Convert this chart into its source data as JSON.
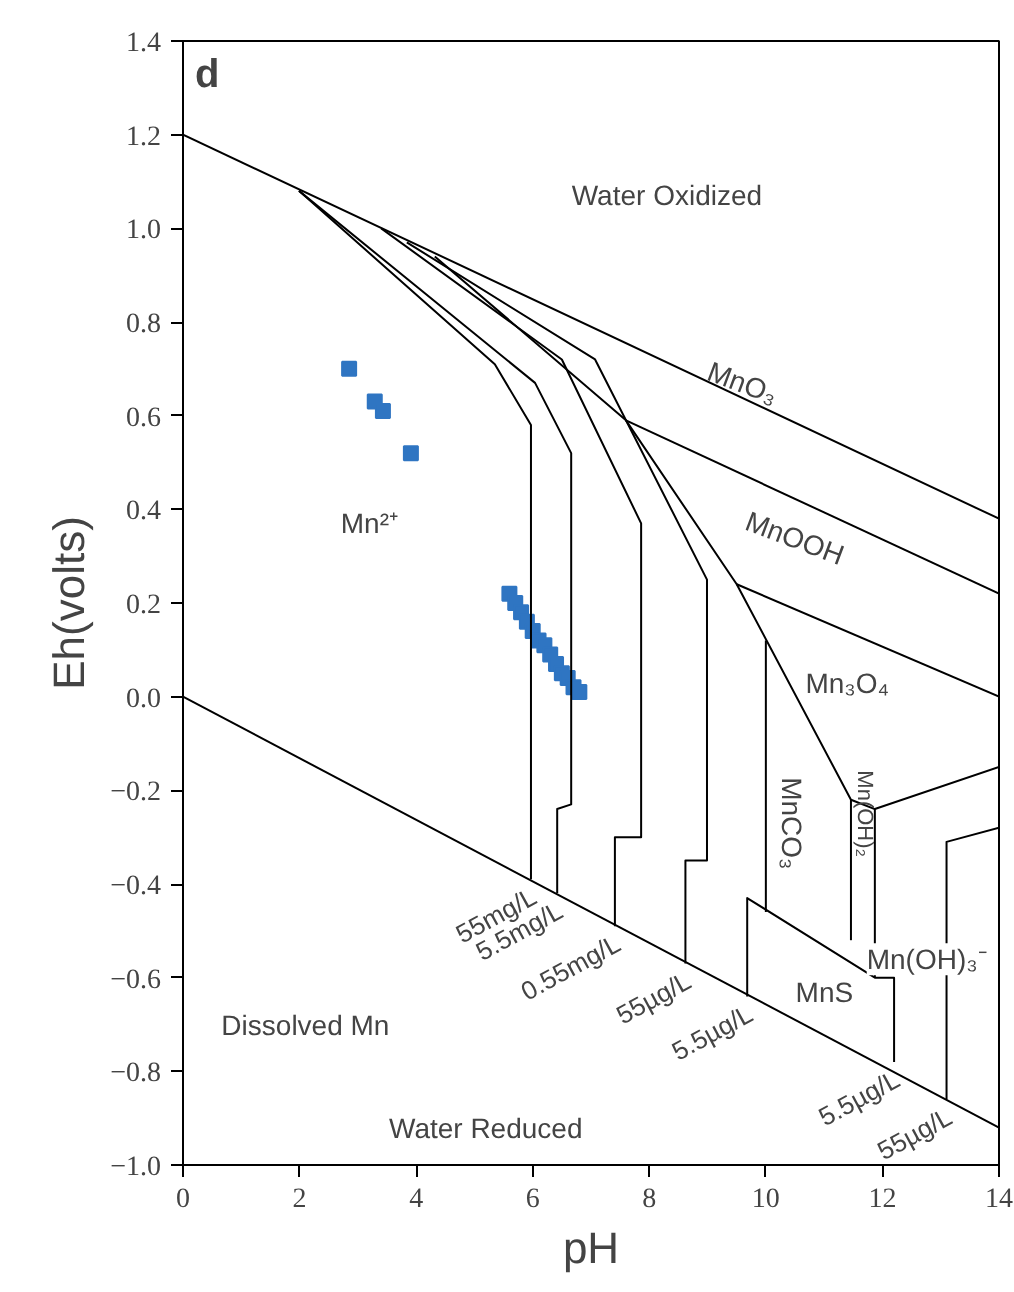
{
  "chart_data": {
    "type": "scatter",
    "title": "d",
    "xlabel": "pH",
    "ylabel": "Eh(volts)",
    "xlim": [
      0,
      14
    ],
    "ylim": [
      -1.0,
      1.4
    ],
    "xticks": [
      0,
      2,
      4,
      6,
      8,
      10,
      12,
      14
    ],
    "yticks": [
      {
        "value": -1.0,
        "label": "−1.0"
      },
      {
        "value": -0.8,
        "label": "−0.8"
      },
      {
        "value": -0.6,
        "label": "−0.6"
      },
      {
        "value": -0.4,
        "label": "−0.4"
      },
      {
        "value": -0.2,
        "label": "−0.2"
      },
      {
        "value": 0,
        "label": "0.0"
      },
      {
        "value": 0.2,
        "label": "0.2"
      },
      {
        "value": 0.4,
        "label": "0.4"
      },
      {
        "value": 0.6,
        "label": "0.6"
      },
      {
        "value": 0.8,
        "label": "0.8"
      },
      {
        "value": 1.0,
        "label": "1.0"
      },
      {
        "value": 1.2,
        "label": "1.2"
      },
      {
        "value": 1.4,
        "label": "1.4"
      }
    ],
    "grid": false,
    "line_style": "solid",
    "series": [
      {
        "marker": "square",
        "color": "#2f75c2",
        "x": [
          2.85,
          3.29,
          3.43,
          3.91,
          5.6,
          5.7,
          5.8,
          5.9,
          6.0,
          6.1,
          6.2,
          6.3,
          6.4,
          6.5,
          6.6,
          6.7,
          6.8
        ],
        "values": [
          0.7,
          0.63,
          0.61,
          0.52,
          0.22,
          0.2,
          0.18,
          0.16,
          0.14,
          0.12,
          0.11,
          0.09,
          0.07,
          0.05,
          0.04,
          0.02,
          0.01
        ]
      },
      {
        "type": "line",
        "color": "#000000",
        "x": [
          0,
          14
        ],
        "values": [
          1.2,
          0.38
        ]
      },
      {
        "type": "line",
        "color": "#000000",
        "x": [
          0,
          14
        ],
        "values": [
          0.0,
          -0.92
        ]
      },
      {
        "type": "line",
        "color": "#000000",
        "x": [
          1.99,
          5.35,
          5.97,
          5.97
        ],
        "values": [
          1.08,
          0.71,
          0.58,
          -0.39
        ]
      },
      {
        "type": "line",
        "color": "#000000",
        "x": [
          1.99,
          6.04,
          6.66,
          6.66,
          6.42,
          6.42
        ],
        "values": [
          1.08,
          0.67,
          0.52,
          -0.23,
          -0.24,
          -0.42
        ]
      },
      {
        "type": "line",
        "color": "#000000",
        "x": [
          3.4,
          6.5,
          7.86,
          7.86,
          7.41,
          7.41
        ],
        "values": [
          1.0,
          0.72,
          0.37,
          -0.3,
          -0.3,
          -0.49
        ]
      },
      {
        "type": "line",
        "color": "#000000",
        "x": [
          3.84,
          7.07,
          8.99,
          8.99,
          8.62,
          8.62
        ],
        "values": [
          0.97,
          0.72,
          0.25,
          -0.35,
          -0.35,
          -0.57
        ]
      },
      {
        "type": "line",
        "color": "#000000",
        "x": [
          4.32,
          7.6,
          9.5,
          11.46,
          11.87,
          14
        ],
        "values": [
          0.94,
          0.59,
          0.24,
          -0.22,
          -0.24,
          -0.15
        ]
      },
      {
        "type": "line",
        "color": "#000000",
        "x": [
          7.6,
          14
        ],
        "values": [
          0.59,
          0.22
        ]
      },
      {
        "type": "line",
        "color": "#000000",
        "x": [
          9.5,
          14
        ],
        "values": [
          0.24,
          0.0
        ]
      },
      {
        "type": "line",
        "color": "#000000",
        "x": [
          10.0,
          10.0
        ],
        "values": [
          0.12,
          -0.46
        ]
      },
      {
        "type": "line",
        "color": "#000000",
        "x": [
          11.46,
          11.46
        ],
        "values": [
          -0.22,
          -0.52
        ]
      },
      {
        "type": "line",
        "color": "#000000",
        "x": [
          11.87,
          11.87
        ],
        "values": [
          -0.24,
          -0.6
        ]
      },
      {
        "type": "line",
        "color": "#000000",
        "x": [
          9.68,
          9.68,
          11.87,
          12.2,
          12.2
        ],
        "values": [
          -0.64,
          -0.43,
          -0.6,
          -0.6,
          -0.78
        ]
      },
      {
        "type": "line",
        "color": "#000000",
        "x": [
          13.1,
          13.1,
          14
        ],
        "values": [
          -0.86,
          -0.31,
          -0.28
        ]
      }
    ],
    "annotations": [
      "Water Oxidized",
      "MnO₃",
      "MnOOH",
      "Mn₃O₄",
      "MnCO₃",
      "Mn(OH)₂",
      "Mn(OH)₃⁻",
      "MnS",
      "Mn²⁺",
      "Dissolved Mn",
      "Water Reduced",
      {
        "text": "55mg/L",
        "x": 5.97,
        "y": -0.39
      },
      {
        "text": "5.5mg/L",
        "x": 6.42,
        "y": -0.42
      },
      {
        "text": "0.55mg/L",
        "x": 7.41,
        "y": -0.49
      },
      {
        "text": "55µg/L",
        "x": 8.62,
        "y": -0.57
      },
      {
        "text": "5.5µg/L",
        "x": 9.68,
        "y": -0.64
      },
      {
        "text": "5.5µg/L",
        "x": 12.2,
        "y": -0.78
      },
      {
        "text": "55µg/L",
        "x": 13.1,
        "y": -0.86
      }
    ]
  }
}
